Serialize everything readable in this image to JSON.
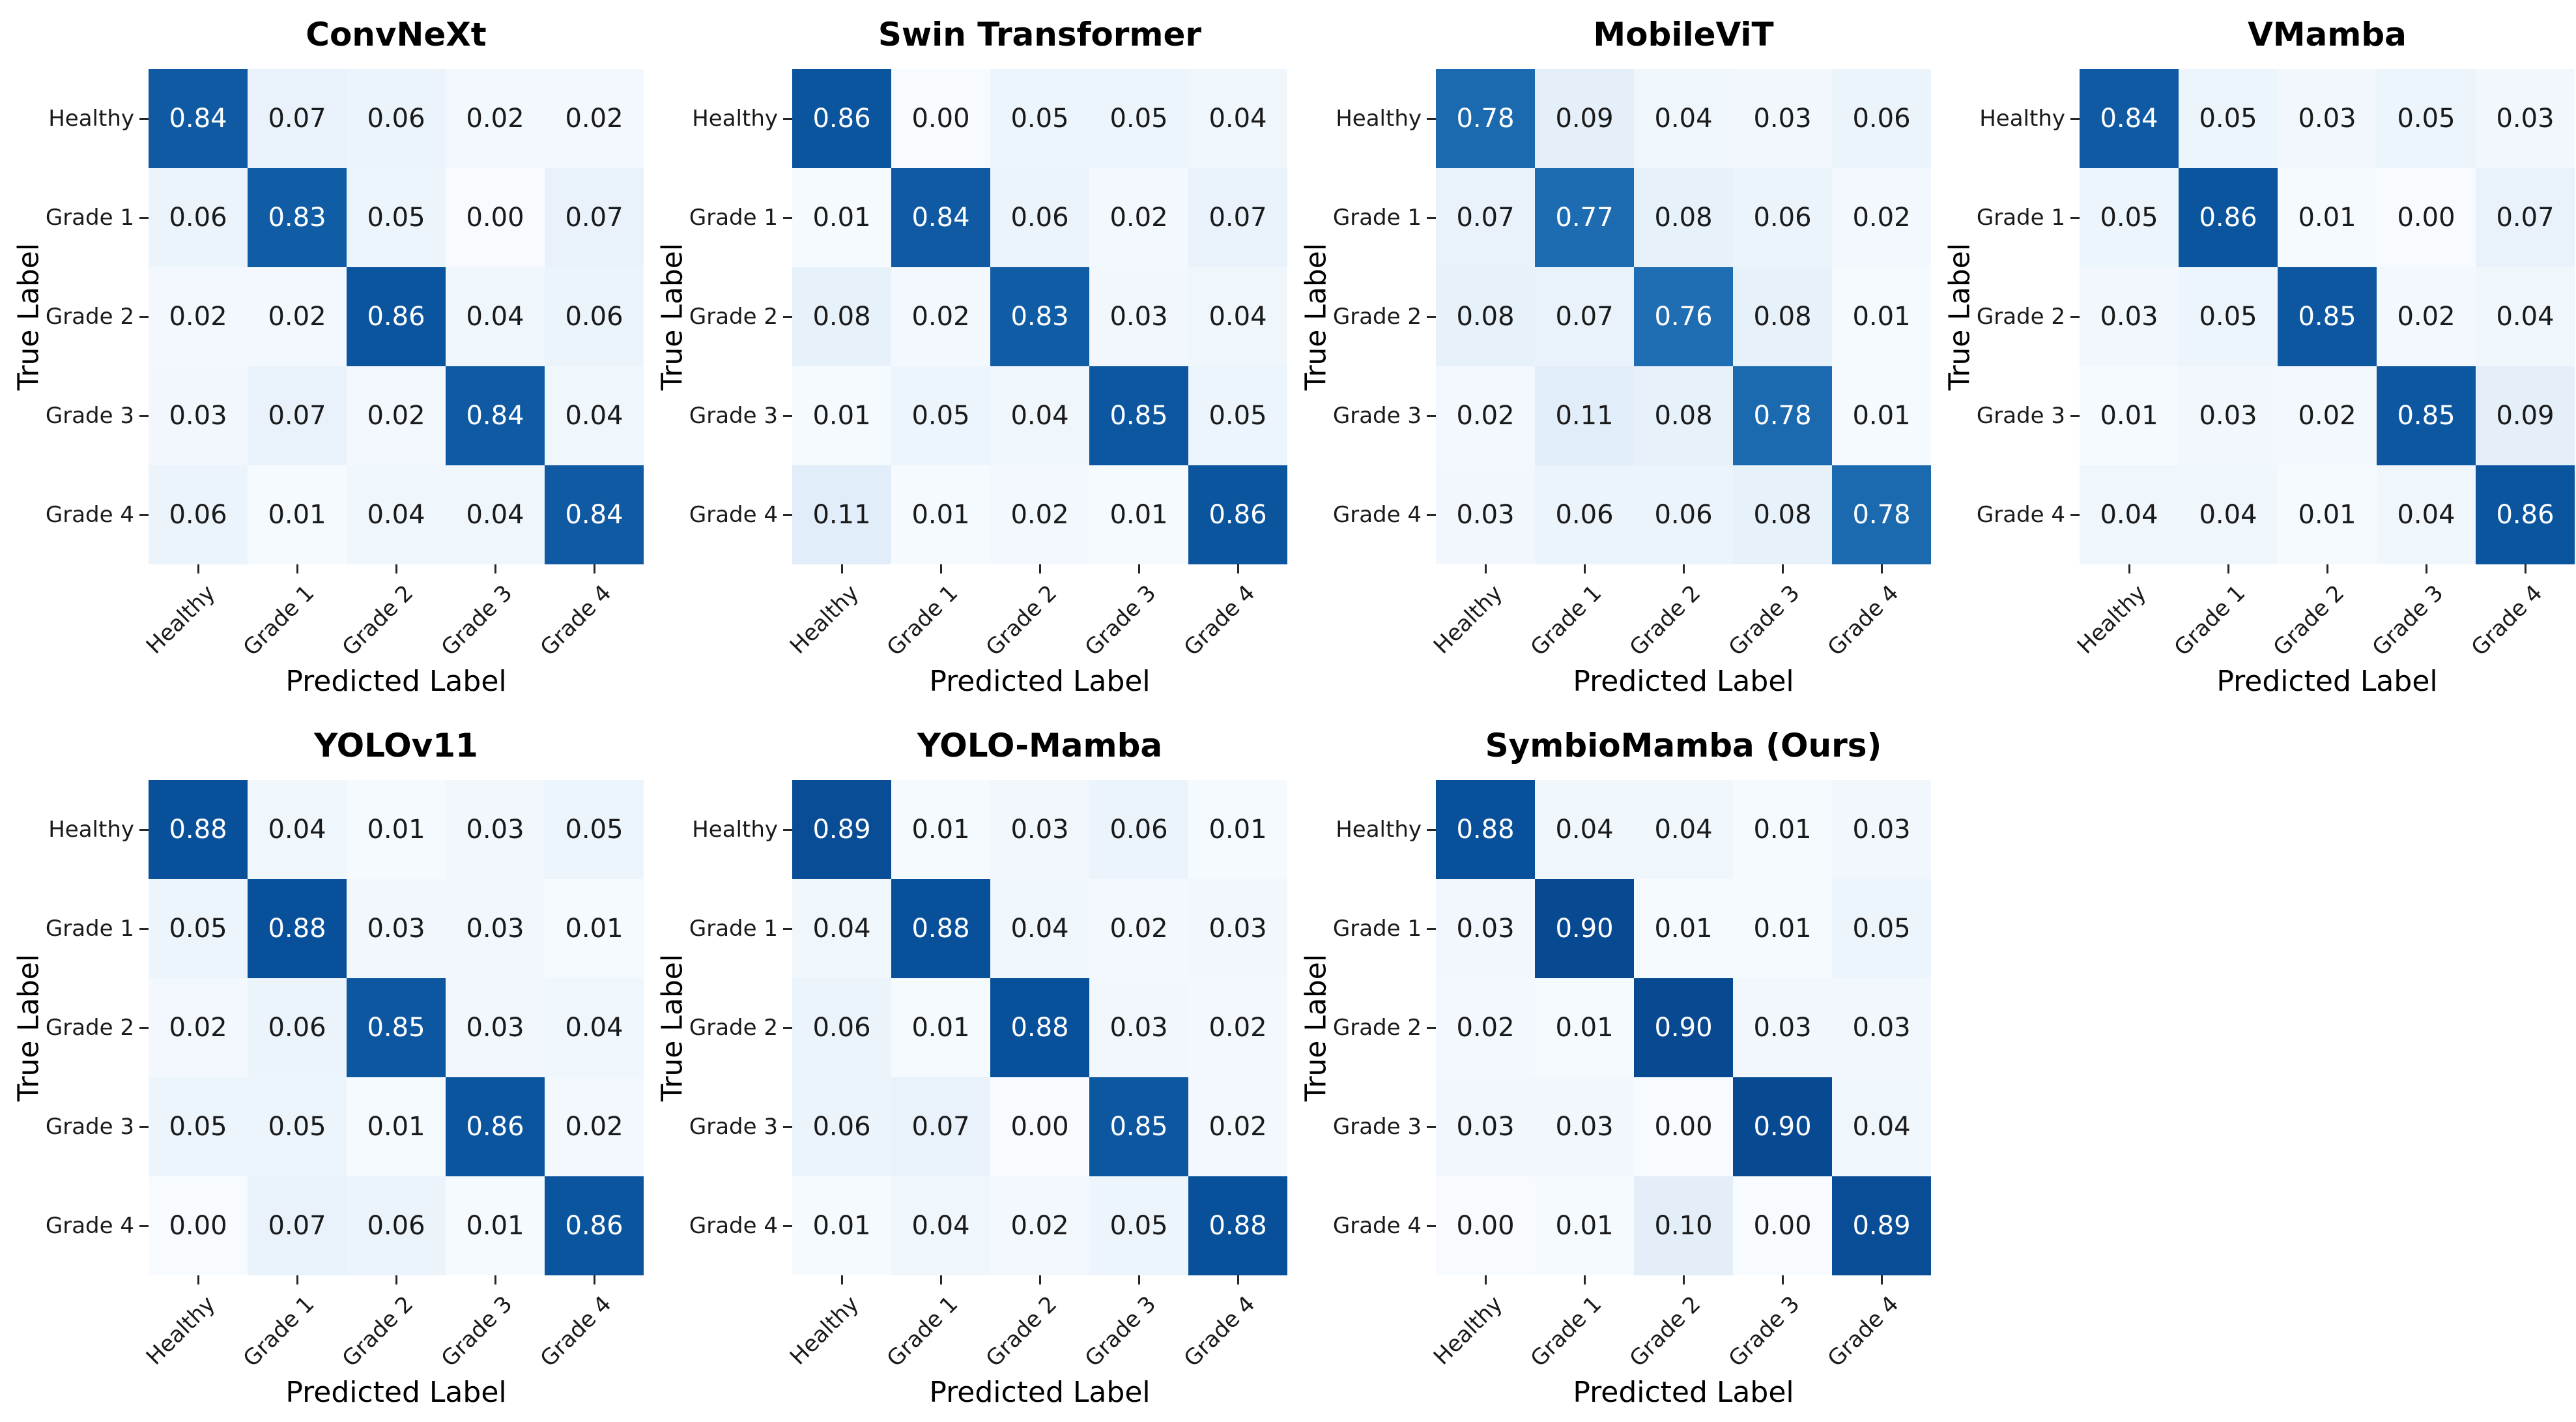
{
  "figure": {
    "background": "#ffffff",
    "x_axis_label": "Predicted Label",
    "y_axis_label": "True Label",
    "class_labels": [
      "Healthy",
      "Grade 1",
      "Grade 2",
      "Grade 3",
      "Grade 4"
    ],
    "colors": {
      "colormap": "Blues",
      "vmin": 0,
      "vmax": 1,
      "blues_anchors": [
        [
          247,
          251,
          255
        ],
        [
          222,
          235,
          247
        ],
        [
          198,
          219,
          239
        ],
        [
          158,
          202,
          225
        ],
        [
          107,
          174,
          214
        ],
        [
          66,
          146,
          198
        ],
        [
          33,
          113,
          181
        ],
        [
          8,
          81,
          156
        ],
        [
          8,
          48,
          107
        ]
      ],
      "cell_text_dark": "#1a1a1a",
      "cell_text_light": "#ffffff",
      "tick_color": "#262626"
    }
  },
  "chart_data": [
    {
      "type": "heatmap",
      "title": "ConvNeXt",
      "xlabel": "Predicted Label",
      "ylabel": "True Label",
      "x_categories": [
        "Healthy",
        "Grade 1",
        "Grade 2",
        "Grade 3",
        "Grade 4"
      ],
      "y_categories": [
        "Healthy",
        "Grade 1",
        "Grade 2",
        "Grade 3",
        "Grade 4"
      ],
      "values": [
        [
          0.84,
          0.07,
          0.06,
          0.02,
          0.02
        ],
        [
          0.06,
          0.83,
          0.05,
          0.0,
          0.07
        ],
        [
          0.02,
          0.02,
          0.86,
          0.04,
          0.06
        ],
        [
          0.03,
          0.07,
          0.02,
          0.84,
          0.04
        ],
        [
          0.06,
          0.01,
          0.04,
          0.04,
          0.84
        ]
      ]
    },
    {
      "type": "heatmap",
      "title": "Swin Transformer",
      "xlabel": "Predicted Label",
      "ylabel": "True Label",
      "x_categories": [
        "Healthy",
        "Grade 1",
        "Grade 2",
        "Grade 3",
        "Grade 4"
      ],
      "y_categories": [
        "Healthy",
        "Grade 1",
        "Grade 2",
        "Grade 3",
        "Grade 4"
      ],
      "values": [
        [
          0.86,
          0.0,
          0.05,
          0.05,
          0.04
        ],
        [
          0.01,
          0.84,
          0.06,
          0.02,
          0.07
        ],
        [
          0.08,
          0.02,
          0.83,
          0.03,
          0.04
        ],
        [
          0.01,
          0.05,
          0.04,
          0.85,
          0.05
        ],
        [
          0.11,
          0.01,
          0.02,
          0.01,
          0.86
        ]
      ]
    },
    {
      "type": "heatmap",
      "title": "MobileViT",
      "xlabel": "Predicted Label",
      "ylabel": "True Label",
      "x_categories": [
        "Healthy",
        "Grade 1",
        "Grade 2",
        "Grade 3",
        "Grade 4"
      ],
      "y_categories": [
        "Healthy",
        "Grade 1",
        "Grade 2",
        "Grade 3",
        "Grade 4"
      ],
      "values": [
        [
          0.78,
          0.09,
          0.04,
          0.03,
          0.06
        ],
        [
          0.07,
          0.77,
          0.08,
          0.06,
          0.02
        ],
        [
          0.08,
          0.07,
          0.76,
          0.08,
          0.01
        ],
        [
          0.02,
          0.11,
          0.08,
          0.78,
          0.01
        ],
        [
          0.03,
          0.06,
          0.06,
          0.08,
          0.78
        ]
      ]
    },
    {
      "type": "heatmap",
      "title": "VMamba",
      "xlabel": "Predicted Label",
      "ylabel": "True Label",
      "x_categories": [
        "Healthy",
        "Grade 1",
        "Grade 2",
        "Grade 3",
        "Grade 4"
      ],
      "y_categories": [
        "Healthy",
        "Grade 1",
        "Grade 2",
        "Grade 3",
        "Grade 4"
      ],
      "values": [
        [
          0.84,
          0.05,
          0.03,
          0.05,
          0.03
        ],
        [
          0.05,
          0.86,
          0.01,
          0.0,
          0.07
        ],
        [
          0.03,
          0.05,
          0.85,
          0.02,
          0.04
        ],
        [
          0.01,
          0.03,
          0.02,
          0.85,
          0.09
        ],
        [
          0.04,
          0.04,
          0.01,
          0.04,
          0.86
        ]
      ]
    },
    {
      "type": "heatmap",
      "title": "YOLOv11",
      "xlabel": "Predicted Label",
      "ylabel": "True Label",
      "x_categories": [
        "Healthy",
        "Grade 1",
        "Grade 2",
        "Grade 3",
        "Grade 4"
      ],
      "y_categories": [
        "Healthy",
        "Grade 1",
        "Grade 2",
        "Grade 3",
        "Grade 4"
      ],
      "values": [
        [
          0.88,
          0.04,
          0.01,
          0.03,
          0.05
        ],
        [
          0.05,
          0.88,
          0.03,
          0.03,
          0.01
        ],
        [
          0.02,
          0.06,
          0.85,
          0.03,
          0.04
        ],
        [
          0.05,
          0.05,
          0.01,
          0.86,
          0.02
        ],
        [
          0.0,
          0.07,
          0.06,
          0.01,
          0.86
        ]
      ]
    },
    {
      "type": "heatmap",
      "title": "YOLO-Mamba",
      "xlabel": "Predicted Label",
      "ylabel": "True Label",
      "x_categories": [
        "Healthy",
        "Grade 1",
        "Grade 2",
        "Grade 3",
        "Grade 4"
      ],
      "y_categories": [
        "Healthy",
        "Grade 1",
        "Grade 2",
        "Grade 3",
        "Grade 4"
      ],
      "values": [
        [
          0.89,
          0.01,
          0.03,
          0.06,
          0.01
        ],
        [
          0.04,
          0.88,
          0.04,
          0.02,
          0.03
        ],
        [
          0.06,
          0.01,
          0.88,
          0.03,
          0.02
        ],
        [
          0.06,
          0.07,
          0.0,
          0.85,
          0.02
        ],
        [
          0.01,
          0.04,
          0.02,
          0.05,
          0.88
        ]
      ]
    },
    {
      "type": "heatmap",
      "title": "SymbioMamba (Ours)",
      "xlabel": "Predicted Label",
      "ylabel": "True Label",
      "x_categories": [
        "Healthy",
        "Grade 1",
        "Grade 2",
        "Grade 3",
        "Grade 4"
      ],
      "y_categories": [
        "Healthy",
        "Grade 1",
        "Grade 2",
        "Grade 3",
        "Grade 4"
      ],
      "values": [
        [
          0.88,
          0.04,
          0.04,
          0.01,
          0.03
        ],
        [
          0.03,
          0.9,
          0.01,
          0.01,
          0.05
        ],
        [
          0.02,
          0.01,
          0.9,
          0.03,
          0.03
        ],
        [
          0.03,
          0.03,
          0.0,
          0.9,
          0.04
        ],
        [
          0.0,
          0.01,
          0.1,
          0.0,
          0.89
        ]
      ]
    }
  ]
}
